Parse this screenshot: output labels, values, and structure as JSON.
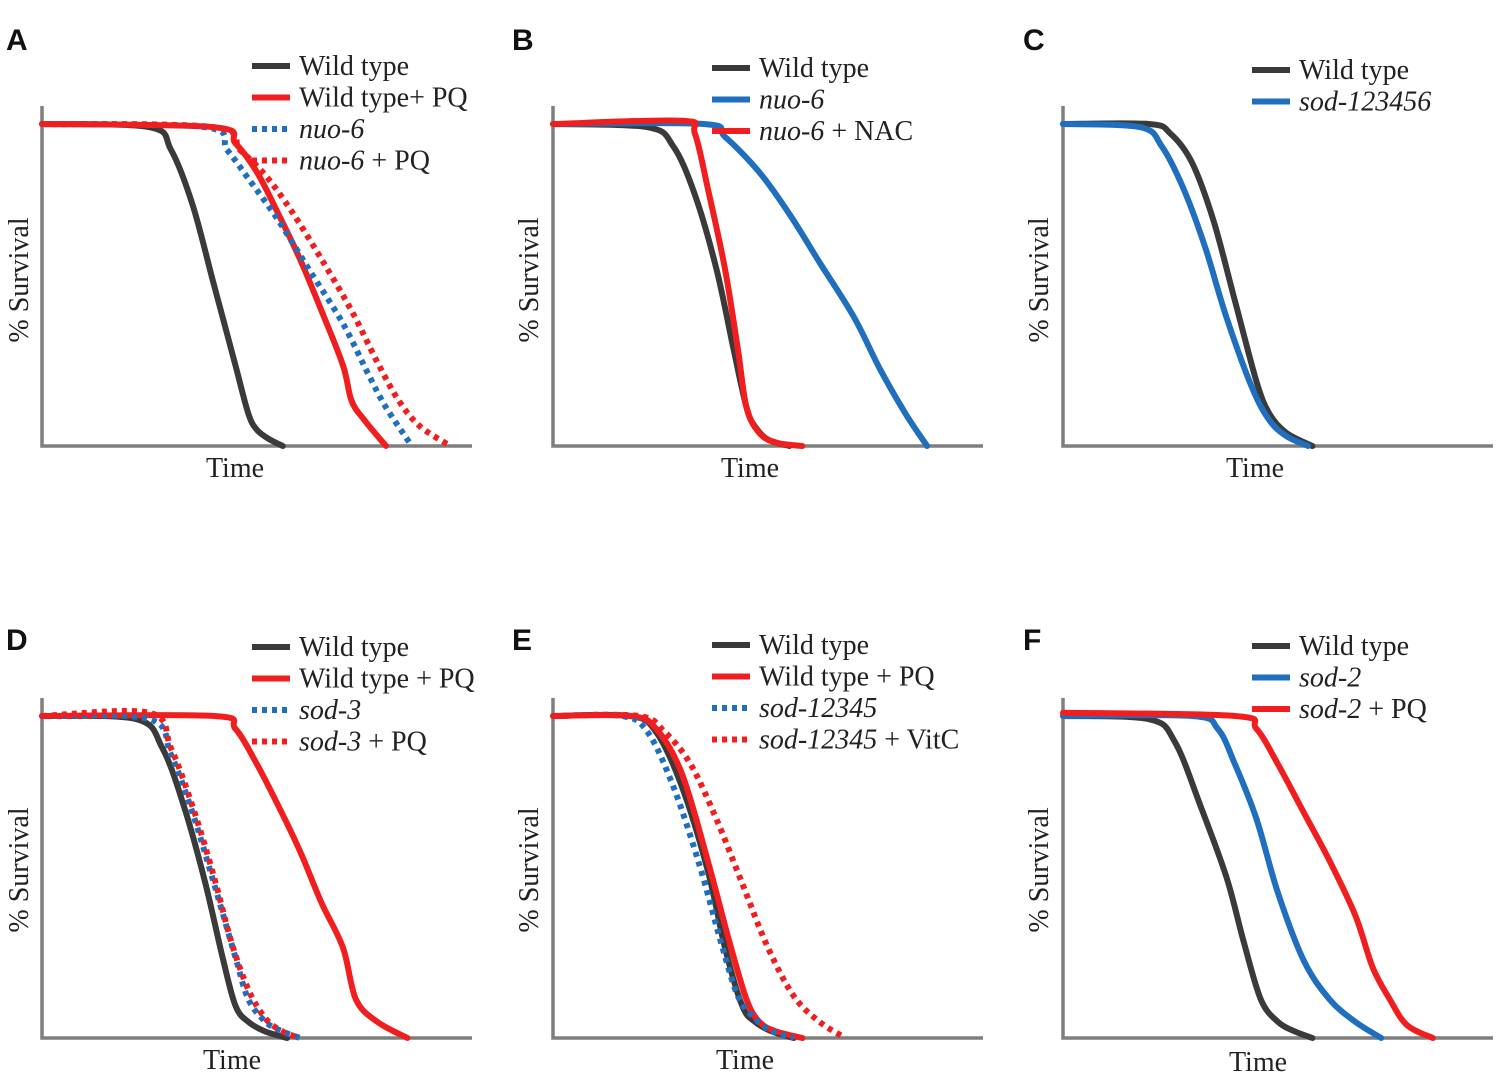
{
  "colors": {
    "black": "#3a3a3a",
    "red": "#f01e1e",
    "blue": "#1f6fbe",
    "axis": "#7f7f7f"
  },
  "chart_data": [
    {
      "panel": "A",
      "type": "line",
      "xlabel": "Time",
      "ylabel": "% Survival",
      "xlim": [
        0,
        100
      ],
      "ylim": [
        0,
        100
      ],
      "series": [
        {
          "name_parts": [
            {
              "text": "Wild type",
              "italic": false
            }
          ],
          "color": "black",
          "style": "solid",
          "x": [
            0,
            25,
            30,
            35,
            40,
            45,
            48,
            50,
            53,
            56
          ],
          "y": [
            100,
            99,
            92,
            75,
            50,
            25,
            10,
            5,
            2,
            0
          ]
        },
        {
          "name_parts": [
            {
              "text": "Wild type+ PQ",
              "italic": false
            }
          ],
          "color": "red",
          "style": "solid",
          "x": [
            0,
            40,
            45,
            50,
            55,
            60,
            65,
            70,
            72,
            75,
            80
          ],
          "y": [
            100,
            99,
            94,
            85,
            72,
            58,
            42,
            25,
            14,
            8,
            0
          ]
        },
        {
          "name_parts": [
            {
              "text": "nuo-6",
              "italic": true
            }
          ],
          "color": "blue",
          "style": "dotted",
          "x": [
            0,
            38,
            43,
            48,
            55,
            62,
            70,
            76,
            80,
            86
          ],
          "y": [
            100,
            99,
            92,
            83,
            70,
            55,
            38,
            22,
            12,
            0
          ]
        },
        {
          "name_parts": [
            {
              "text": "nuo-6",
              "italic": true
            },
            {
              "text": " + PQ",
              "italic": false
            }
          ],
          "color": "red",
          "style": "dotted",
          "x": [
            0,
            40,
            46,
            52,
            58,
            65,
            72,
            78,
            83,
            88,
            95
          ],
          "y": [
            100,
            99,
            92,
            84,
            73,
            58,
            42,
            26,
            14,
            6,
            0
          ]
        }
      ]
    },
    {
      "panel": "B",
      "type": "line",
      "xlabel": "Time",
      "ylabel": "% Survival",
      "xlim": [
        0,
        100
      ],
      "ylim": [
        0,
        100
      ],
      "series": [
        {
          "name_parts": [
            {
              "text": "Wild type",
              "italic": false
            }
          ],
          "color": "black",
          "style": "solid",
          "x": [
            0,
            22,
            28,
            33,
            38,
            42,
            45,
            47,
            50,
            55
          ],
          "y": [
            100,
            99,
            93,
            78,
            55,
            30,
            12,
            6,
            2,
            0
          ]
        },
        {
          "name_parts": [
            {
              "text": "nuo-6",
              "italic": true
            }
          ],
          "color": "blue",
          "style": "solid",
          "x": [
            0,
            35,
            40,
            48,
            55,
            62,
            70,
            76,
            82,
            87
          ],
          "y": [
            100,
            100,
            96,
            85,
            72,
            57,
            40,
            24,
            10,
            0
          ]
        },
        {
          "name_parts": [
            {
              "text": "nuo-6",
              "italic": true
            },
            {
              "text": " + NAC",
              "italic": false
            }
          ],
          "color": "red",
          "style": "solid",
          "x": [
            0,
            30,
            33,
            36,
            40,
            43,
            45,
            48,
            52,
            58
          ],
          "y": [
            100,
            101,
            97,
            80,
            55,
            30,
            12,
            4,
            1,
            0
          ]
        }
      ]
    },
    {
      "panel": "C",
      "type": "line",
      "xlabel": "Time",
      "ylabel": "% Survival",
      "xlim": [
        0,
        100
      ],
      "ylim": [
        0,
        100
      ],
      "series": [
        {
          "name_parts": [
            {
              "text": "Wild type",
              "italic": false
            }
          ],
          "color": "black",
          "style": "solid",
          "x": [
            0,
            20,
            25,
            30,
            35,
            40,
            45,
            48,
            52,
            58
          ],
          "y": [
            100,
            100,
            97,
            88,
            70,
            45,
            20,
            10,
            4,
            0
          ]
        },
        {
          "name_parts": [
            {
              "text": "sod-123456",
              "italic": true
            }
          ],
          "color": "blue",
          "style": "solid",
          "x": [
            0,
            18,
            23,
            28,
            33,
            38,
            44,
            48,
            52,
            57
          ],
          "y": [
            100,
            99,
            93,
            80,
            62,
            40,
            18,
            8,
            3,
            0
          ]
        }
      ]
    },
    {
      "panel": "D",
      "type": "line",
      "xlabel": "Time",
      "ylabel": "% Survival",
      "xlim": [
        0,
        100
      ],
      "ylim": [
        0,
        100
      ],
      "series": [
        {
          "name_parts": [
            {
              "text": "Wild type",
              "italic": false
            }
          ],
          "color": "black",
          "style": "solid",
          "x": [
            0,
            22,
            28,
            33,
            38,
            42,
            45,
            48,
            52,
            57
          ],
          "y": [
            100,
            99,
            90,
            72,
            48,
            25,
            10,
            5,
            2,
            0
          ]
        },
        {
          "name_parts": [
            {
              "text": "Wild type + PQ",
              "italic": false
            }
          ],
          "color": "red",
          "style": "solid",
          "x": [
            0,
            40,
            45,
            50,
            55,
            60,
            65,
            70,
            73,
            78,
            85
          ],
          "y": [
            100,
            100,
            96,
            85,
            72,
            58,
            42,
            28,
            12,
            5,
            0
          ]
        },
        {
          "name_parts": [
            {
              "text": "sod-3",
              "italic": true
            }
          ],
          "color": "blue",
          "style": "dotted",
          "x": [
            0,
            25,
            30,
            35,
            40,
            45,
            48,
            52,
            56,
            60
          ],
          "y": [
            100,
            99,
            88,
            70,
            48,
            25,
            12,
            5,
            2,
            0
          ]
        },
        {
          "name_parts": [
            {
              "text": "sod-3",
              "italic": true
            },
            {
              "text": " + PQ",
              "italic": false
            }
          ],
          "color": "red",
          "style": "dotted",
          "x": [
            0,
            25,
            30,
            35,
            40,
            44,
            48,
            52,
            56,
            60
          ],
          "y": [
            100,
            101,
            90,
            72,
            50,
            30,
            15,
            6,
            2,
            0
          ]
        }
      ]
    },
    {
      "panel": "E",
      "type": "line",
      "xlabel": "Time",
      "ylabel": "% Survival",
      "xlim": [
        0,
        100
      ],
      "ylim": [
        0,
        100
      ],
      "series": [
        {
          "name_parts": [
            {
              "text": "Wild type",
              "italic": false
            }
          ],
          "color": "black",
          "style": "solid",
          "x": [
            0,
            18,
            24,
            30,
            36,
            40,
            44,
            47,
            51,
            56
          ],
          "y": [
            100,
            100,
            95,
            78,
            52,
            28,
            10,
            5,
            2,
            0
          ]
        },
        {
          "name_parts": [
            {
              "text": "Wild type + PQ",
              "italic": false
            }
          ],
          "color": "red",
          "style": "solid",
          "x": [
            0,
            18,
            24,
            30,
            36,
            41,
            45,
            48,
            52,
            58
          ],
          "y": [
            100,
            100,
            96,
            82,
            55,
            30,
            12,
            5,
            2,
            0
          ]
        },
        {
          "name_parts": [
            {
              "text": "sod-12345",
              "italic": true
            }
          ],
          "color": "blue",
          "style": "dotted",
          "x": [
            0,
            16,
            22,
            28,
            34,
            39,
            43,
            47,
            51,
            56
          ],
          "y": [
            100,
            100,
            95,
            78,
            54,
            30,
            13,
            6,
            2,
            0
          ]
        },
        {
          "name_parts": [
            {
              "text": "sod-12345",
              "italic": true
            },
            {
              "text": " + VitC",
              "italic": false
            }
          ],
          "color": "red",
          "style": "dotted",
          "x": [
            0,
            20,
            26,
            32,
            38,
            44,
            50,
            56,
            62,
            68
          ],
          "y": [
            100,
            100,
            95,
            85,
            68,
            48,
            28,
            13,
            5,
            0
          ]
        }
      ]
    },
    {
      "panel": "F",
      "type": "line",
      "xlabel": "Time",
      "ylabel": "% Survival",
      "xlim": [
        0,
        100
      ],
      "ylim": [
        0,
        100
      ],
      "series": [
        {
          "name_parts": [
            {
              "text": "Wild type",
              "italic": false
            }
          ],
          "color": "black",
          "style": "solid",
          "x": [
            0,
            20,
            26,
            32,
            38,
            42,
            46,
            50,
            54,
            58
          ],
          "y": [
            100,
            99,
            92,
            72,
            50,
            30,
            12,
            5,
            2,
            0
          ]
        },
        {
          "name_parts": [
            {
              "text": "sod-2",
              "italic": true
            }
          ],
          "color": "blue",
          "style": "solid",
          "x": [
            0,
            30,
            36,
            40,
            45,
            50,
            56,
            62,
            68,
            74
          ],
          "y": [
            100,
            100,
            96,
            85,
            68,
            45,
            24,
            12,
            5,
            0
          ]
        },
        {
          "name_parts": [
            {
              "text": "sod-2",
              "italic": true
            },
            {
              "text": " + PQ",
              "italic": false
            }
          ],
          "color": "red",
          "style": "solid",
          "x": [
            0,
            40,
            45,
            50,
            56,
            62,
            68,
            72,
            76,
            80,
            86
          ],
          "y": [
            101,
            100,
            96,
            85,
            70,
            55,
            38,
            22,
            12,
            4,
            0
          ]
        }
      ]
    }
  ]
}
